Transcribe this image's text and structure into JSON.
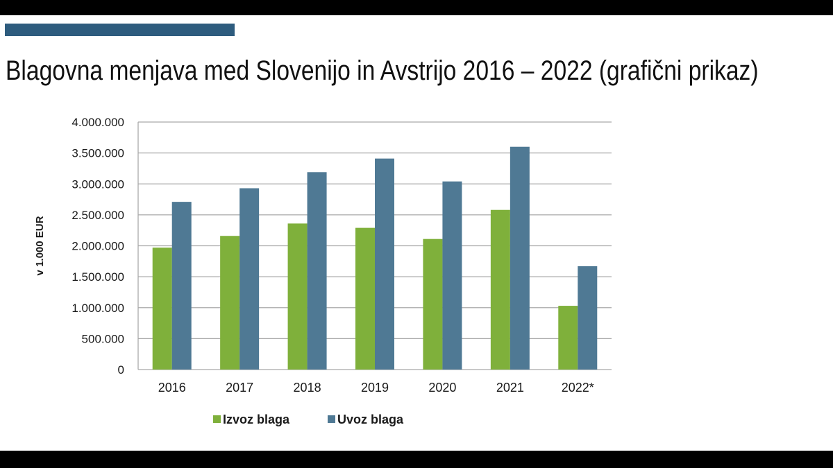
{
  "slide": {
    "title": "Blagovna menjava med Slovenijo in Avstrijo 2016 – 2022 (grafični prikaz)",
    "accent_color": "#2e5c7e"
  },
  "chart_data": {
    "type": "bar",
    "categories": [
      "2016",
      "2017",
      "2018",
      "2019",
      "2020",
      "2021",
      "2022*"
    ],
    "series": [
      {
        "name": "Izvoz blaga",
        "color": "#7fb03b",
        "values": [
          1970000,
          2160000,
          2360000,
          2290000,
          2110000,
          2580000,
          1030000
        ]
      },
      {
        "name": "Uvoz blaga",
        "color": "#4f7994",
        "values": [
          2710000,
          2930000,
          3190000,
          3410000,
          3040000,
          3600000,
          1670000
        ]
      }
    ],
    "ylabel": "v 1.000 EUR",
    "ylim": [
      0,
      4000000
    ],
    "yticks": [
      "0",
      "500.000",
      "1.000.000",
      "1.500.000",
      "2.000.000",
      "2.500.000",
      "3.000.000",
      "3.500.000",
      "4.000.000"
    ],
    "grid": true,
    "legend_position": "bottom-left"
  }
}
